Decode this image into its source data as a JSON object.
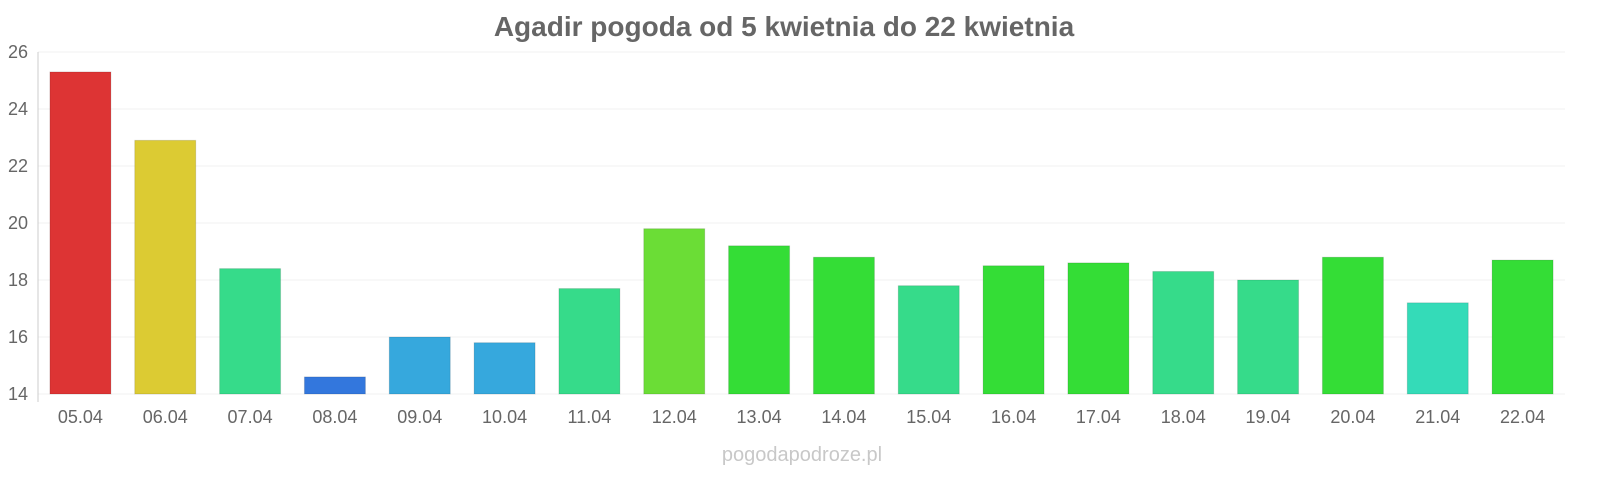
{
  "chart_data": {
    "type": "bar",
    "title": "Agadir pogoda od 5 kwietnia do 22 kwietnia",
    "xlabel": "",
    "ylabel": "",
    "ylim": [
      14,
      26
    ],
    "yticks": [
      14,
      16,
      18,
      20,
      22,
      24,
      26
    ],
    "grid": true,
    "categories": [
      "05.04",
      "06.04",
      "07.04",
      "08.04",
      "09.04",
      "10.04",
      "11.04",
      "12.04",
      "13.04",
      "14.04",
      "15.04",
      "16.04",
      "17.04",
      "18.04",
      "19.04",
      "20.04",
      "21.04",
      "22.04"
    ],
    "values": [
      25.3,
      22.9,
      18.4,
      14.6,
      16.0,
      15.8,
      17.7,
      19.8,
      19.2,
      18.8,
      17.8,
      18.5,
      18.6,
      18.3,
      18.0,
      18.8,
      17.2,
      18.7
    ],
    "colors": [
      "#dd3434",
      "#dccb33",
      "#36db8a",
      "#3377dd",
      "#36a8dd",
      "#36a8dd",
      "#36db8a",
      "#6bdd36",
      "#34dd36",
      "#34dd36",
      "#36db8a",
      "#34dd36",
      "#34dd36",
      "#36db8a",
      "#36db8a",
      "#34dd36",
      "#34dbb8",
      "#34dd36"
    ]
  },
  "watermark": "pogodapodroze.pl"
}
